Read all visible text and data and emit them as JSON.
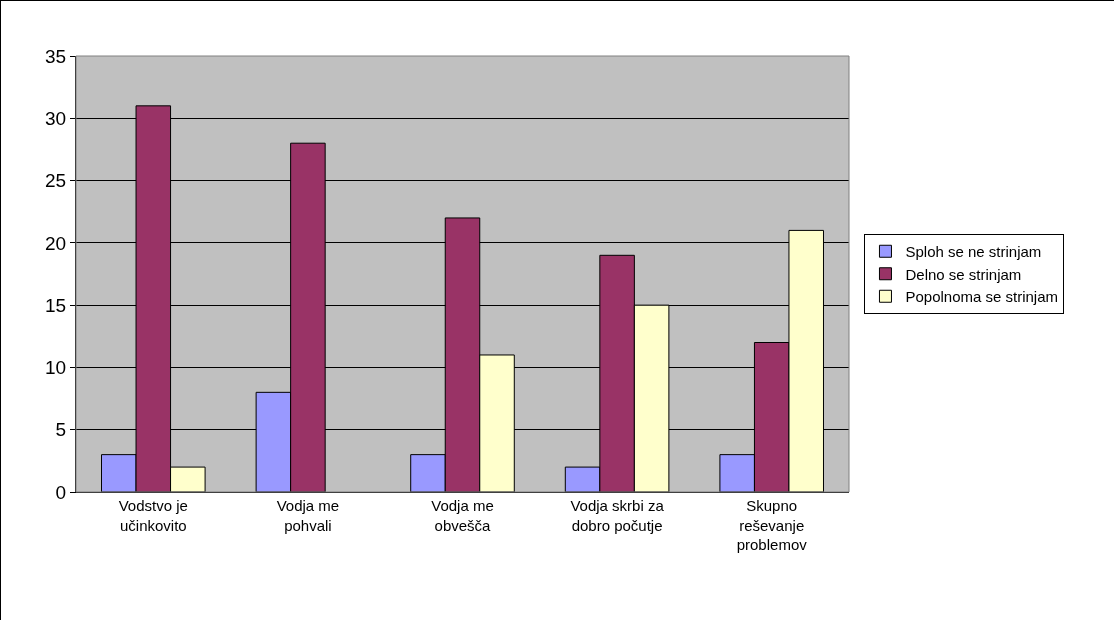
{
  "chart_data": {
    "type": "bar",
    "categories": [
      "Vodstvo je učinkovito",
      "Vodja me pohvali",
      "Vodja me obvešča",
      "Vodja skrbi za dobro počutje",
      "Skupno reševanje problemov"
    ],
    "series": [
      {
        "name": "Sploh se ne strinjam",
        "color": "#9999ff",
        "values": [
          3,
          8,
          3,
          2,
          3
        ]
      },
      {
        "name": "Delno se strinjam",
        "color": "#993366",
        "values": [
          31,
          28,
          22,
          19,
          12
        ]
      },
      {
        "name": "Popolnoma se strinjam",
        "color": "#ffffcc",
        "values": [
          2,
          null,
          11,
          15,
          21
        ]
      }
    ],
    "ylim": [
      0,
      35
    ],
    "yticks": [
      0,
      5,
      10,
      15,
      20,
      25,
      30,
      35
    ],
    "grid": "y",
    "legend": "right"
  }
}
